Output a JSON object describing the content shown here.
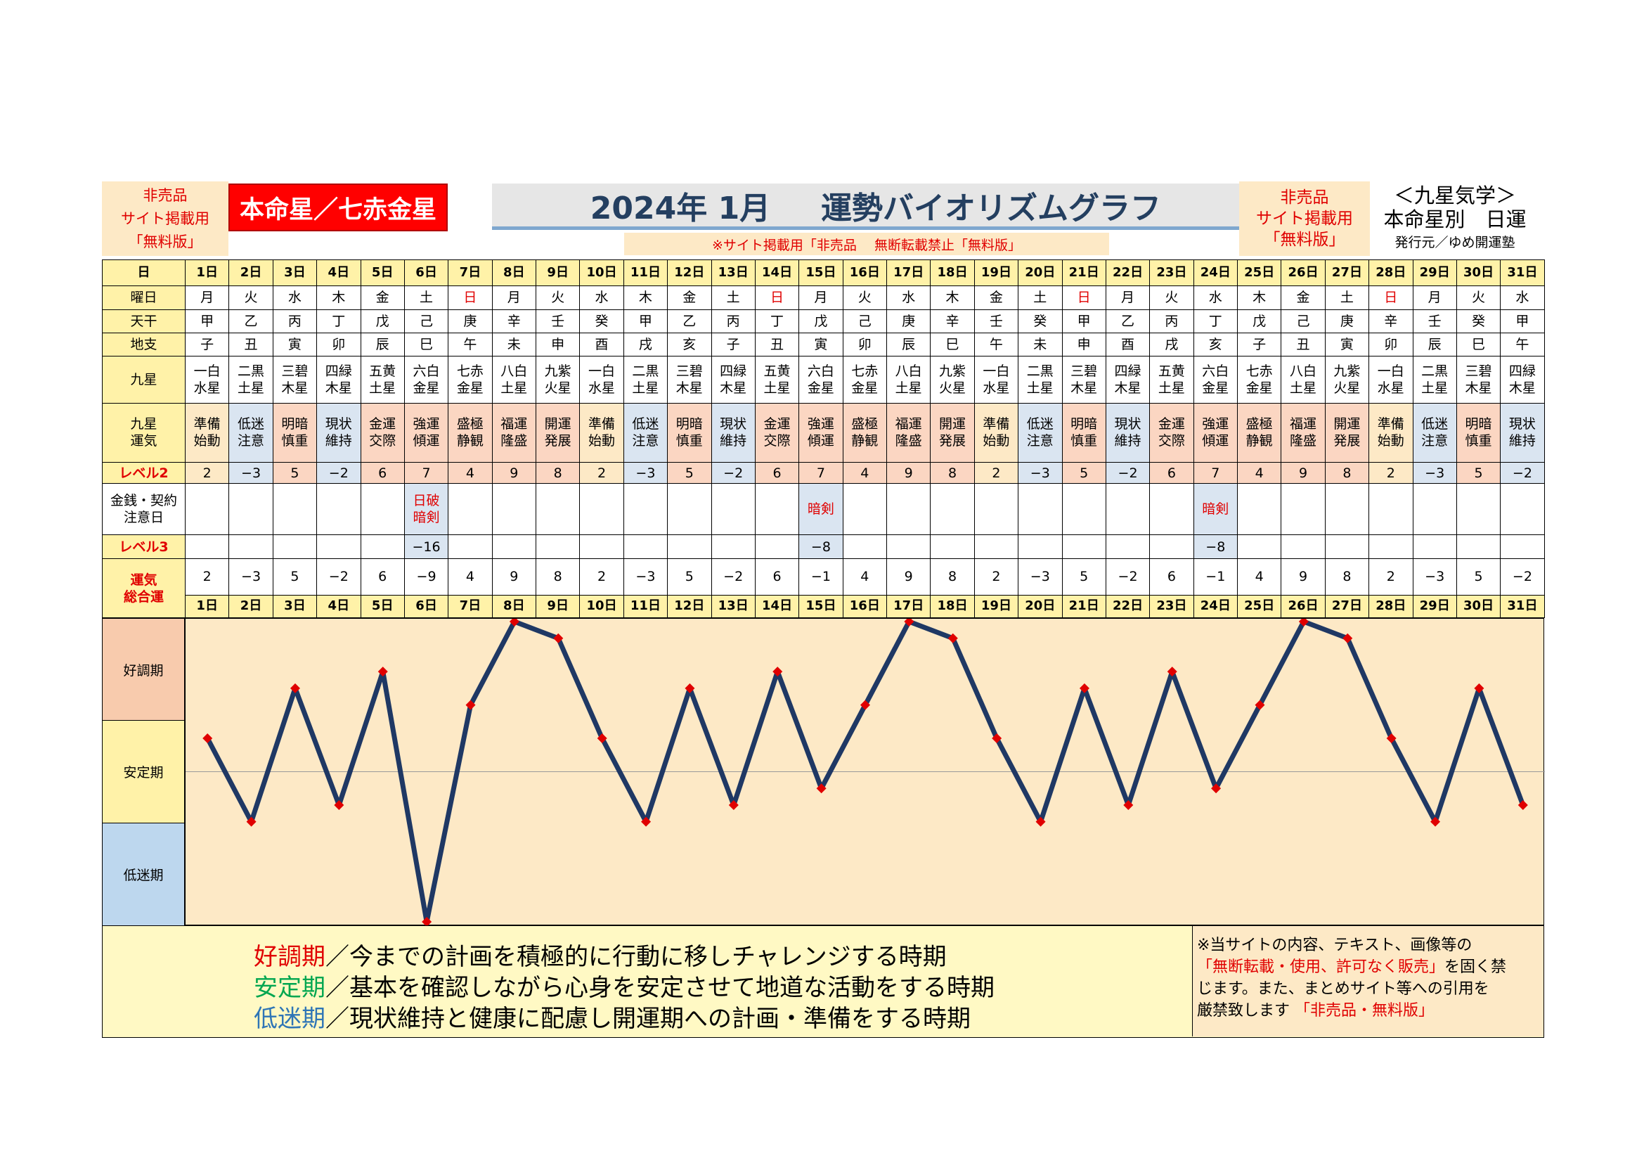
{
  "header": {
    "left_notice": [
      "非売品",
      "サイト掲載用",
      "「無料版」"
    ],
    "honmeisei": "本命星／七赤金星",
    "title_date": "2024年 1月",
    "title_main": "運勢バイオリズムグラフ",
    "sub_notice": "※サイト掲載用「非売品　 無断転載禁止「無料版」",
    "right_notice": [
      "非売品",
      "サイト掲載用",
      "「無料版」"
    ],
    "kyusei": [
      "＜九星気学＞",
      "本命星別　日運"
    ],
    "publisher": "発行元／ゆめ開運塾"
  },
  "row_labels": {
    "day": "日",
    "weekday": "曜日",
    "tenkan": "天干",
    "chishi": "地支",
    "kyusei": "九星",
    "kyusei_unki": [
      "九星",
      "運気"
    ],
    "level2": "レベル2",
    "money": [
      "金銭・契約",
      "注意日"
    ],
    "level3": "レベル3",
    "total": [
      "運気",
      "総合運"
    ]
  },
  "days": [
    "1日",
    "2日",
    "3日",
    "4日",
    "5日",
    "6日",
    "7日",
    "8日",
    "9日",
    "10日",
    "11日",
    "12日",
    "13日",
    "14日",
    "15日",
    "16日",
    "17日",
    "18日",
    "19日",
    "20日",
    "21日",
    "22日",
    "23日",
    "24日",
    "25日",
    "26日",
    "27日",
    "28日",
    "29日",
    "30日",
    "31日"
  ],
  "weekdays": [
    "月",
    "火",
    "水",
    "木",
    "金",
    "土",
    "日",
    "月",
    "火",
    "水",
    "木",
    "金",
    "土",
    "日",
    "月",
    "火",
    "水",
    "木",
    "金",
    "土",
    "日",
    "月",
    "火",
    "水",
    "木",
    "金",
    "土",
    "日",
    "月",
    "火",
    "水"
  ],
  "tenkan": [
    "甲",
    "乙",
    "丙",
    "丁",
    "戊",
    "己",
    "庚",
    "辛",
    "壬",
    "癸",
    "甲",
    "乙",
    "丙",
    "丁",
    "戊",
    "己",
    "庚",
    "辛",
    "壬",
    "癸",
    "甲",
    "乙",
    "丙",
    "丁",
    "戊",
    "己",
    "庚",
    "辛",
    "壬",
    "癸",
    "甲"
  ],
  "chishi": [
    "子",
    "丑",
    "寅",
    "卯",
    "辰",
    "巳",
    "午",
    "未",
    "申",
    "酉",
    "戌",
    "亥",
    "子",
    "丑",
    "寅",
    "卯",
    "辰",
    "巳",
    "午",
    "未",
    "申",
    "酉",
    "戌",
    "亥",
    "子",
    "丑",
    "寅",
    "卯",
    "辰",
    "巳",
    "午"
  ],
  "kyusei": [
    [
      "一白",
      "水星"
    ],
    [
      "二黒",
      "土星"
    ],
    [
      "三碧",
      "木星"
    ],
    [
      "四緑",
      "木星"
    ],
    [
      "五黄",
      "土星"
    ],
    [
      "六白",
      "金星"
    ],
    [
      "七赤",
      "金星"
    ],
    [
      "八白",
      "土星"
    ],
    [
      "九紫",
      "火星"
    ],
    [
      "一白",
      "水星"
    ],
    [
      "二黒",
      "土星"
    ],
    [
      "三碧",
      "木星"
    ],
    [
      "四緑",
      "木星"
    ],
    [
      "五黄",
      "土星"
    ],
    [
      "六白",
      "金星"
    ],
    [
      "七赤",
      "金星"
    ],
    [
      "八白",
      "土星"
    ],
    [
      "九紫",
      "火星"
    ],
    [
      "一白",
      "水星"
    ],
    [
      "二黒",
      "土星"
    ],
    [
      "三碧",
      "木星"
    ],
    [
      "四緑",
      "木星"
    ],
    [
      "五黄",
      "土星"
    ],
    [
      "六白",
      "金星"
    ],
    [
      "七赤",
      "金星"
    ],
    [
      "八白",
      "土星"
    ],
    [
      "九紫",
      "火星"
    ],
    [
      "一白",
      "水星"
    ],
    [
      "二黒",
      "土星"
    ],
    [
      "三碧",
      "木星"
    ],
    [
      "四緑",
      "木星"
    ]
  ],
  "unki": [
    [
      "準備",
      "始動"
    ],
    [
      "低迷",
      "注意"
    ],
    [
      "明暗",
      "慎重"
    ],
    [
      "現状",
      "維持"
    ],
    [
      "金運",
      "交際"
    ],
    [
      "強運",
      "傾運"
    ],
    [
      "盛極",
      "静観"
    ],
    [
      "福運",
      "隆盛"
    ],
    [
      "開運",
      "発展"
    ],
    [
      "準備",
      "始動"
    ],
    [
      "低迷",
      "注意"
    ],
    [
      "明暗",
      "慎重"
    ],
    [
      "現状",
      "維持"
    ],
    [
      "金運",
      "交際"
    ],
    [
      "強運",
      "傾運"
    ],
    [
      "盛極",
      "静観"
    ],
    [
      "福運",
      "隆盛"
    ],
    [
      "開運",
      "発展"
    ],
    [
      "準備",
      "始動"
    ],
    [
      "低迷",
      "注意"
    ],
    [
      "明暗",
      "慎重"
    ],
    [
      "現状",
      "維持"
    ],
    [
      "金運",
      "交際"
    ],
    [
      "強運",
      "傾運"
    ],
    [
      "盛極",
      "静観"
    ],
    [
      "福運",
      "隆盛"
    ],
    [
      "開運",
      "発展"
    ],
    [
      "準備",
      "始動"
    ],
    [
      "低迷",
      "注意"
    ],
    [
      "明暗",
      "慎重"
    ],
    [
      "現状",
      "維持"
    ]
  ],
  "level2": [
    "2",
    "−3",
    "5",
    "−2",
    "6",
    "7",
    "4",
    "9",
    "8",
    "2",
    "−3",
    "5",
    "−2",
    "6",
    "7",
    "4",
    "9",
    "8",
    "2",
    "−3",
    "5",
    "−2",
    "6",
    "7",
    "4",
    "9",
    "8",
    "2",
    "−3",
    "5",
    "−2"
  ],
  "money": {
    "6": [
      "日破",
      "暗剣"
    ],
    "15": [
      "暗剣"
    ],
    "24": [
      "暗剣"
    ]
  },
  "level3": {
    "6": "−16",
    "15": "−8",
    "24": "−8"
  },
  "total": [
    "2",
    "−3",
    "5",
    "−2",
    "6",
    "−9",
    "4",
    "9",
    "8",
    "2",
    "−3",
    "5",
    "−2",
    "6",
    "−1",
    "4",
    "9",
    "8",
    "2",
    "−3",
    "5",
    "−2",
    "6",
    "−1",
    "4",
    "9",
    "8",
    "2",
    "−3",
    "5",
    "−2"
  ],
  "bands": {
    "good": "好調期",
    "stable": "安定期",
    "low": "低迷期"
  },
  "legend": [
    {
      "key": "好調期",
      "text": "／今までの計画を積極的に行動に移しチャレンジする時期"
    },
    {
      "key": "安定期",
      "text": "／基本を確認しながら心身を安定させて地道な活動をする時期"
    },
    {
      "key": "低迷期",
      "text": "／現状維持と健康に配慮し開運期への計画・準備をする時期"
    }
  ],
  "copyright": {
    "l1": "※当サイトの内容、テキスト、画像等の",
    "l2a": "「無断転載・使用、許可なく販売」",
    "l2b": "を固く禁",
    "l3": "じます。また、まとめサイト等への引用を",
    "l4a": "厳禁致します",
    "l4b": "「非売品・無料版」"
  },
  "colors": {
    "line": "#1f3864",
    "marker": "#e00000",
    "good": "#f8cbad",
    "stable": "#fff2a8",
    "low": "#bdd7ee"
  },
  "chart_data": {
    "type": "line",
    "title": "運勢バイオリズムグラフ",
    "x": [
      "1日",
      "2日",
      "3日",
      "4日",
      "5日",
      "6日",
      "7日",
      "8日",
      "9日",
      "10日",
      "11日",
      "12日",
      "13日",
      "14日",
      "15日",
      "16日",
      "17日",
      "18日",
      "19日",
      "20日",
      "21日",
      "22日",
      "23日",
      "24日",
      "25日",
      "26日",
      "27日",
      "28日",
      "29日",
      "30日",
      "31日"
    ],
    "series": [
      {
        "name": "運気 総合運",
        "values": [
          2,
          -3,
          5,
          -2,
          6,
          -9,
          4,
          9,
          8,
          2,
          -3,
          5,
          -2,
          6,
          -1,
          4,
          9,
          8,
          2,
          -3,
          5,
          -2,
          6,
          -1,
          4,
          9,
          8,
          2,
          -3,
          5,
          -2
        ]
      }
    ],
    "ylim": [
      -9,
      9
    ],
    "bands": [
      "好調期",
      "安定期",
      "低迷期"
    ]
  }
}
